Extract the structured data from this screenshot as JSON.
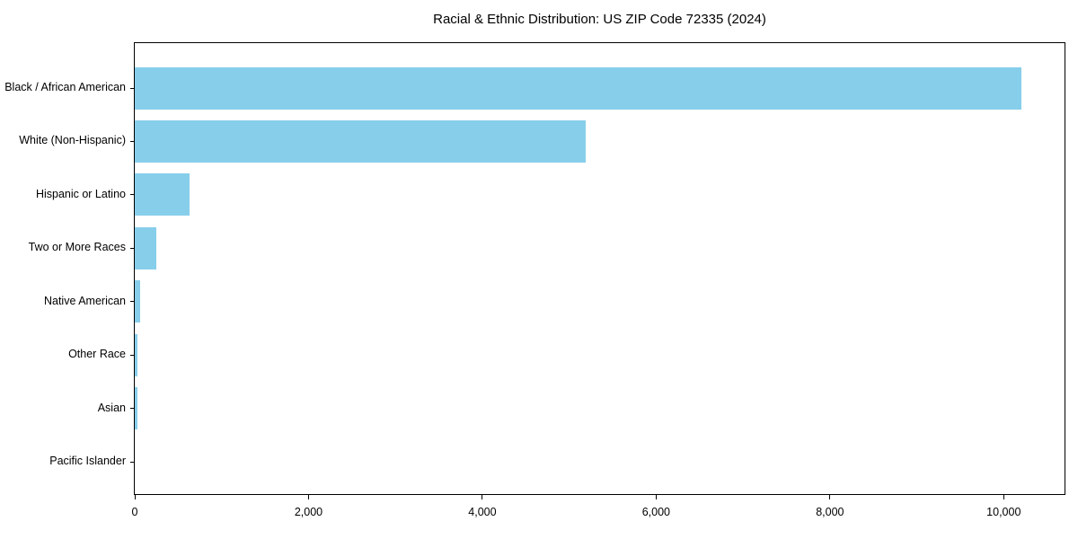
{
  "page": {
    "background": "#ffffff"
  },
  "chart_data": {
    "type": "bar",
    "orientation": "horizontal",
    "title": "Racial & Ethnic Distribution: US ZIP Code 72335 (2024)",
    "categories": [
      "Black / African American",
      "White (Non-Hispanic)",
      "Hispanic or Latino",
      "Two or More Races",
      "Native American",
      "Other Race",
      "Asian",
      "Pacific Islander"
    ],
    "values": [
      10200,
      5190,
      630,
      250,
      60,
      35,
      30,
      0
    ],
    "xlabel": "",
    "ylabel": "",
    "xlim": [
      0,
      10700
    ],
    "x_ticks": [
      0,
      2000,
      4000,
      6000,
      8000,
      10000
    ],
    "x_tick_labels": [
      "0",
      "2,000",
      "4,000",
      "6,000",
      "8,000",
      "10,000"
    ],
    "bar_color": "#87CEEB",
    "axis_color": "#000000",
    "text_color": "#000000",
    "grid": false,
    "legend": "none"
  }
}
